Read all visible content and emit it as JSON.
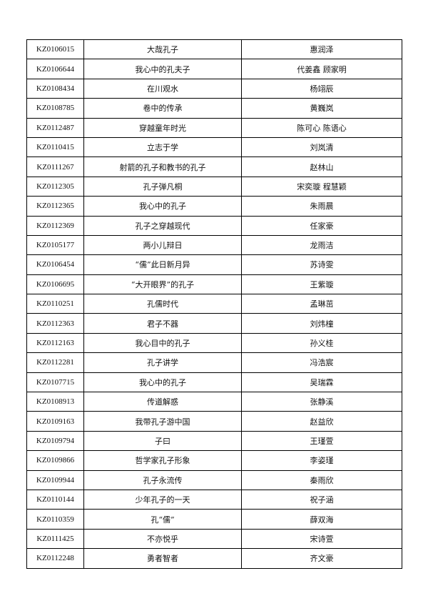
{
  "table": {
    "rows": [
      [
        "KZ0106015",
        "大哉孔子",
        "惠润泽"
      ],
      [
        "KZ0106644",
        "我心中的孔夫子",
        "代姜鑫 顾家明"
      ],
      [
        "KZ0108434",
        "在川观水",
        "杨翊辰"
      ],
      [
        "KZ0108785",
        "卷中的传承",
        "黄巍岚"
      ],
      [
        "KZ0112487",
        "穿越童年时光",
        "陈可心 陈语心"
      ],
      [
        "KZ0110415",
        "立志于学",
        "刘岚清"
      ],
      [
        "KZ0111267",
        "射箭的孔子和教书的孔子",
        "赵林山"
      ],
      [
        "KZ0112305",
        "孔子弹凡桐",
        "宋奕璇 程慧颖"
      ],
      [
        "KZ0112365",
        "我心中的孔子",
        "朱雨晨"
      ],
      [
        "KZ0112369",
        "孔子之穿越现代",
        "任家豪"
      ],
      [
        "KZ0105177",
        "两小儿辩日",
        "龙雨洁"
      ],
      [
        "KZ0106454",
        "“儒”此日新月异",
        "苏诗雯"
      ],
      [
        "KZ0106695",
        "“大开眼界”的孔子",
        "王紫璇"
      ],
      [
        "KZ0110251",
        "孔儒时代",
        "孟琳茁"
      ],
      [
        "KZ0112363",
        "君子不器",
        "刘炜橦"
      ],
      [
        "KZ0112163",
        "我心目中的孔子",
        "孙义桂"
      ],
      [
        "KZ0112281",
        "孔子讲学",
        "冯浩宸"
      ],
      [
        "KZ0107715",
        "我心中的孔子",
        "吴瑞霖"
      ],
      [
        "KZ0108913",
        "传道解惑",
        "张静溪"
      ],
      [
        "KZ0109163",
        "我带孔子游中国",
        "赵益欣"
      ],
      [
        "KZ0109794",
        "子曰",
        "王瑾萱"
      ],
      [
        "KZ0109866",
        "哲学家孔子形象",
        "李姿瑾"
      ],
      [
        "KZ0109944",
        "孔子永流传",
        "秦雨欣"
      ],
      [
        "KZ0110144",
        "少年孔子的一天",
        "祝子涵"
      ],
      [
        "KZ0110359",
        "孔“儒”",
        "薛双海"
      ],
      [
        "KZ0111425",
        "不亦悦乎",
        "宋诗萱"
      ],
      [
        "KZ0112248",
        "勇者智者",
        "齐文豪"
      ]
    ]
  }
}
